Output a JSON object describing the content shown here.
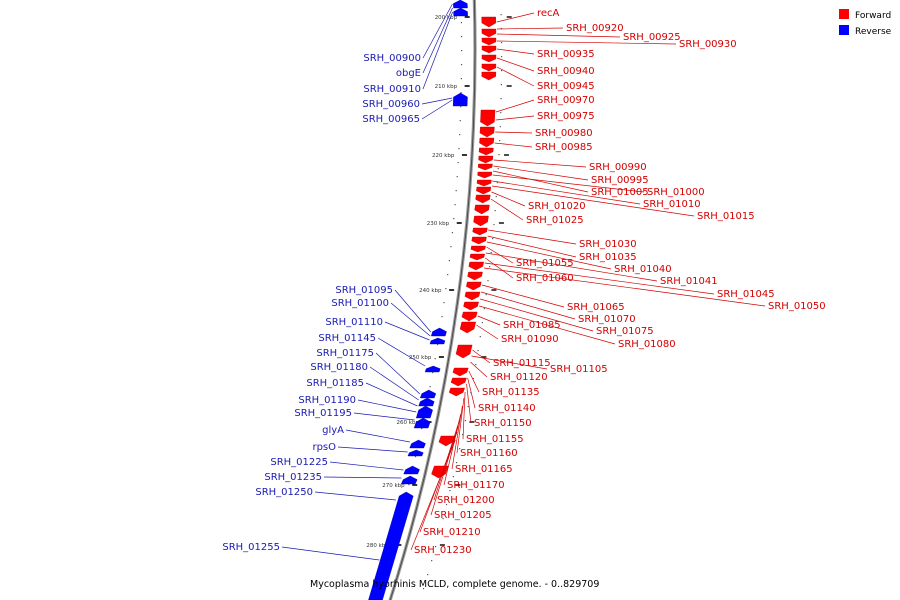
{
  "caption": "Mycoplasma hyorhinis MCLD, complete genome. - 0..829709",
  "legend": [
    {
      "label": "Forward",
      "color": "#ff0000"
    },
    {
      "label": "Reverse",
      "color": "#0000ff"
    }
  ],
  "ticks": [
    "200 kbp",
    "210 kbp",
    "220 kbp",
    "230 kbp",
    "240 kbp",
    "250 kbp",
    "260 kbp",
    "270 kbp",
    "280 kbp"
  ],
  "forward_labels": [
    "recA",
    "SRH_00920",
    "SRH_00925",
    "SRH_00930",
    "SRH_00935",
    "SRH_00940",
    "SRH_00945",
    "SRH_00970",
    "SRH_00975",
    "SRH_00980",
    "SRH_00985",
    "SRH_00990",
    "SRH_00995",
    "SRH_01005",
    "SRH_01000",
    "SRH_01010",
    "SRH_01015",
    "SRH_01020",
    "SRH_01025",
    "SRH_01030",
    "SRH_01035",
    "SRH_01040",
    "SRH_01055",
    "SRH_01041",
    "SRH_01060",
    "SRH_01045",
    "SRH_01050",
    "SRH_01065",
    "SRH_01070",
    "SRH_01075",
    "SRH_01080",
    "SRH_01085",
    "SRH_01090",
    "SRH_01115",
    "SRH_01105",
    "SRH_01120",
    "SRH_01135",
    "SRH_01140",
    "SRH_01150",
    "SRH_01155",
    "SRH_01160",
    "SRH_01165",
    "SRH_01170",
    "SRH_01200",
    "SRH_01205",
    "SRH_01210",
    "SRH_01230"
  ],
  "reverse_labels": [
    "SRH_00900",
    "obgE",
    "SRH_00910",
    "SRH_00960",
    "SRH_00965",
    "SRH_01095",
    "SRH_01100",
    "SRH_01110",
    "SRH_01145",
    "SRH_01175",
    "SRH_01180",
    "SRH_01185",
    "SRH_01190",
    "SRH_01195",
    "glyA",
    "rpsO",
    "SRH_01225",
    "SRH_01235",
    "SRH_01250",
    "SRH_01255"
  ]
}
